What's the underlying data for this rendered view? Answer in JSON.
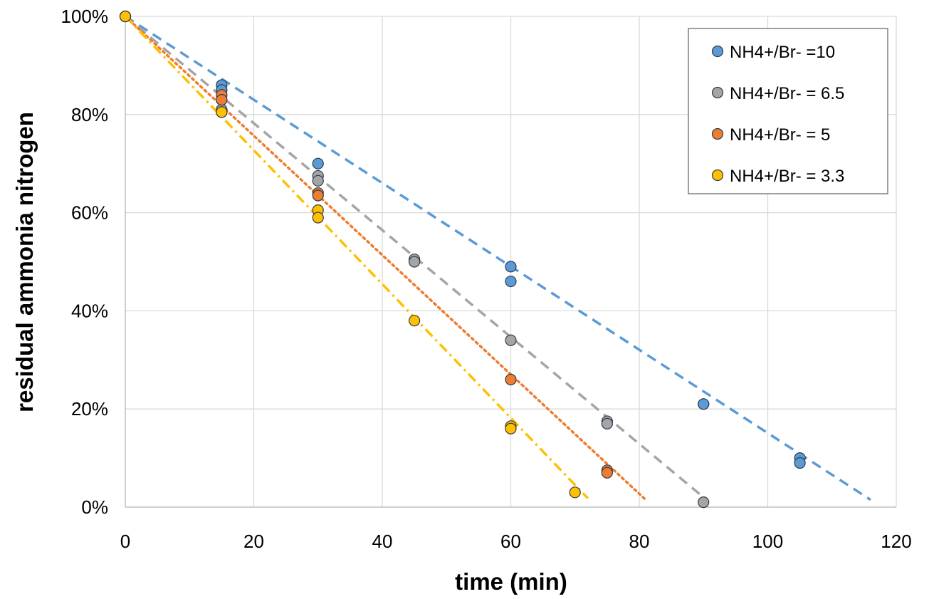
{
  "chart_data": {
    "type": "scatter",
    "title": "",
    "xlabel": "time (min)",
    "ylabel": "residual ammonia nitrogen",
    "xlim": [
      0,
      120
    ],
    "ylim": [
      0,
      100
    ],
    "x_ticks": [
      "0",
      "20",
      "40",
      "60",
      "80",
      "100",
      "120"
    ],
    "y_ticks": [
      "0%",
      "20%",
      "40%",
      "60%",
      "80%",
      "100%"
    ],
    "grid": true,
    "legend_position": "top-right",
    "series": [
      {
        "name": "NH4+/Br- =10",
        "color": "#5B9BD5",
        "trendline": "dashed",
        "points": [
          [
            0,
            100
          ],
          [
            15,
            86
          ],
          [
            15,
            85
          ],
          [
            30,
            70
          ],
          [
            60,
            49
          ],
          [
            60,
            46
          ],
          [
            90,
            21
          ],
          [
            90,
            21
          ],
          [
            105,
            10
          ],
          [
            105,
            9
          ]
        ],
        "fit": [
          [
            0,
            100
          ],
          [
            116,
            1.5
          ]
        ]
      },
      {
        "name": "NH4+/Br- = 6.5",
        "color": "#A5A5A5",
        "trendline": "dashed",
        "points": [
          [
            0,
            100
          ],
          [
            15,
            80.5
          ],
          [
            15,
            81
          ],
          [
            30,
            67.5
          ],
          [
            30,
            66.5
          ],
          [
            45,
            50.5
          ],
          [
            45,
            50
          ],
          [
            60,
            34
          ],
          [
            75,
            17.5
          ],
          [
            75,
            17
          ],
          [
            90,
            1
          ]
        ],
        "fit": [
          [
            0,
            100
          ],
          [
            90,
            2
          ]
        ]
      },
      {
        "name": "NH4+/Br- = 5",
        "color": "#ED7D31",
        "trendline": "dotted",
        "points": [
          [
            0,
            100
          ],
          [
            15,
            84
          ],
          [
            15,
            83
          ],
          [
            30,
            64
          ],
          [
            30,
            63.5
          ],
          [
            60,
            26
          ],
          [
            75,
            7.5
          ],
          [
            75,
            7
          ]
        ],
        "fit": [
          [
            0,
            100
          ],
          [
            81,
            1.5
          ]
        ]
      },
      {
        "name": "NH4+/Br- = 3.3",
        "color": "#FFC000",
        "trendline": "dash-dot",
        "points": [
          [
            0,
            100
          ],
          [
            15,
            80.5
          ],
          [
            30,
            60.5
          ],
          [
            30,
            59
          ],
          [
            45,
            38
          ],
          [
            60,
            16.5
          ],
          [
            60,
            16
          ],
          [
            70,
            3
          ]
        ],
        "fit": [
          [
            0,
            100
          ],
          [
            72,
            1.8
          ]
        ]
      }
    ]
  }
}
